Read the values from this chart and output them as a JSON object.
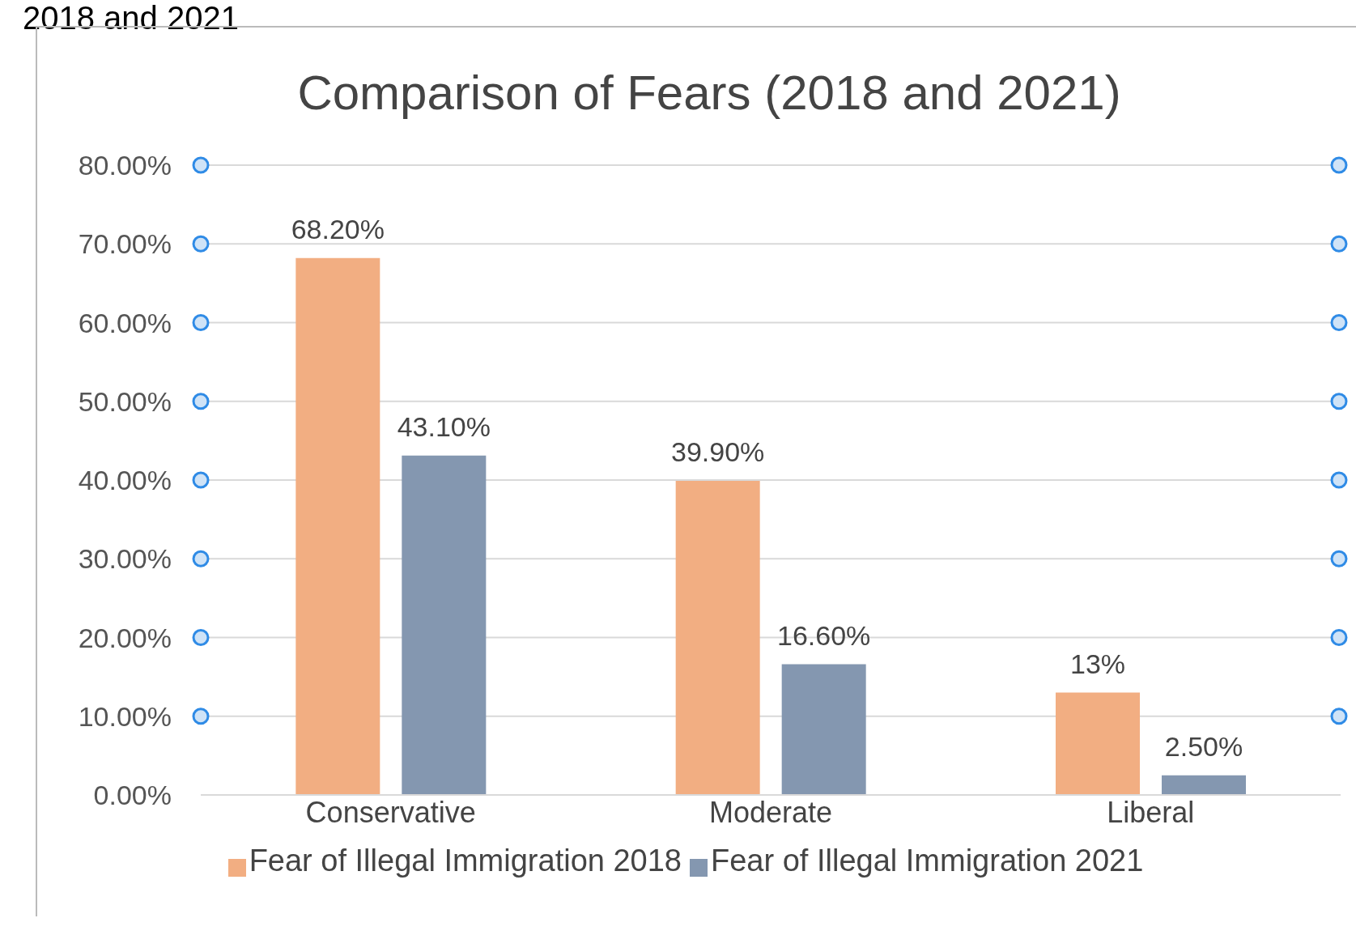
{
  "chart_data": {
    "type": "bar",
    "title": "Comparison of Fears (2018 and 2021)",
    "annotations": [
      "2018 and 2021"
    ],
    "categories": [
      "Conservative",
      "Moderate",
      "Liberal"
    ],
    "series": [
      {
        "name": "Fear of Illegal Immigration 2018",
        "color": "#f2ae82",
        "values": [
          68.2,
          39.9,
          13
        ],
        "value_labels": [
          "68.20%",
          "39.90%",
          "13%"
        ]
      },
      {
        "name": "Fear of Illegal Immigration 2021",
        "color": "#8497b0",
        "values": [
          43.1,
          16.6,
          2.5
        ],
        "value_labels": [
          "43.10%",
          "16.60%",
          "2.50%"
        ]
      }
    ],
    "ylim": [
      0,
      80
    ],
    "yticks": [
      {
        "value": 0,
        "label": "0.00%"
      },
      {
        "value": 10,
        "label": "10.00%"
      },
      {
        "value": 20,
        "label": "20.00%"
      },
      {
        "value": 30,
        "label": "30.00%"
      },
      {
        "value": 40,
        "label": "40.00%"
      },
      {
        "value": 50,
        "label": "50.00%"
      },
      {
        "value": 60,
        "label": "60.00%"
      },
      {
        "value": 70,
        "label": "70.00%"
      },
      {
        "value": 80,
        "label": "80.00%"
      }
    ],
    "grid": "y",
    "legend": "bottom"
  }
}
